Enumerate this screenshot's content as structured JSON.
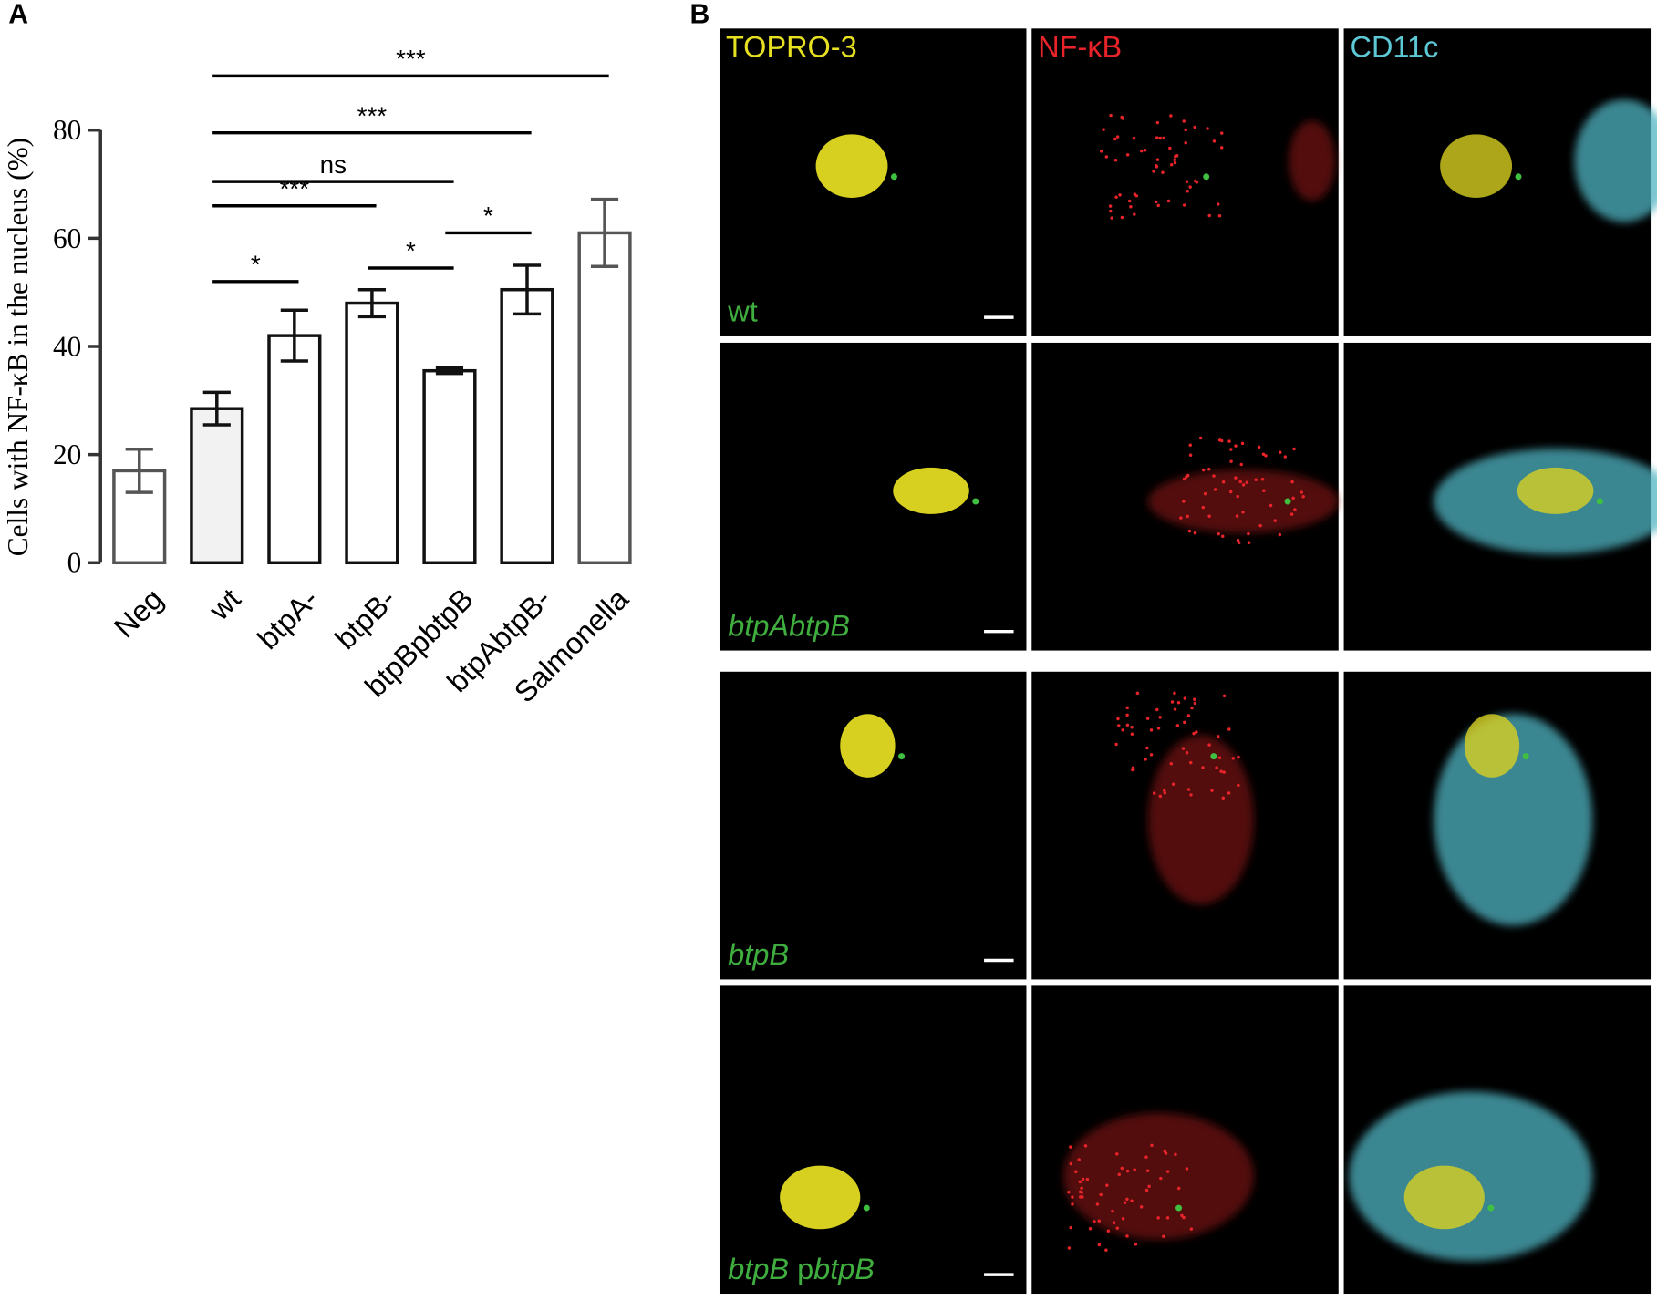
{
  "panel_labels": [
    "A",
    "B"
  ],
  "chart_data": {
    "type": "bar",
    "y_label": "Cells with NF-κB in the nucleus (%)",
    "categories": [
      "Neg",
      "wt",
      "btpA-",
      "btpB-",
      "btpBpbtpB",
      "btpAbtpB-",
      "Salmonella"
    ],
    "values": [
      17,
      28.5,
      42,
      48,
      35.5,
      50.5,
      61
    ],
    "errors": [
      4,
      3,
      4.7,
      2.5,
      0.5,
      4.5,
      6.2
    ],
    "colors": [
      "#ffffff",
      "#f2f2f2",
      "#ffffff",
      "#ffffff",
      "#ffffff",
      "#ffffff",
      "#ffffff"
    ],
    "edge_colors": [
      "#555555",
      "#111111",
      "#111111",
      "#111111",
      "#111111",
      "#111111",
      "#555555"
    ],
    "ylim": [
      0,
      80
    ],
    "yticks": [
      0,
      20,
      40,
      60,
      80
    ],
    "annotations": [
      {
        "label": "*",
        "from": "wt",
        "to": "btpA-",
        "y": 52
      },
      {
        "label": "***",
        "from": "wt",
        "to": "btpB-",
        "y": 66
      },
      {
        "label": "*",
        "from": "btpB-",
        "to": "btpBpbtpB",
        "y": 54.5
      },
      {
        "label": "*",
        "from": "btpBpbtpB",
        "to": "btpAbtpB-",
        "y": 61
      },
      {
        "label": "ns",
        "from": "wt",
        "to": "btpBpbtpB",
        "y": 70.5
      },
      {
        "label": "***",
        "from": "wt",
        "to": "btpAbtpB-",
        "y": 79.5
      },
      {
        "label": "***",
        "from": "wt",
        "to": "Salmonella",
        "y": 90
      }
    ]
  },
  "micrographs": {
    "columns": [
      {
        "label": "TOPRO-3",
        "color": "#e6e020"
      },
      {
        "label": "NF-κB",
        "color": "#e8232a"
      },
      {
        "label": "CD11c",
        "color": "#5ec9d6"
      }
    ],
    "rows": [
      {
        "label": [
          {
            "text": "wt",
            "italic": false
          }
        ]
      },
      {
        "label": [
          {
            "text": "btpAbtpB",
            "italic": true
          }
        ]
      },
      {
        "label": [
          {
            "text": "btpB",
            "italic": true
          }
        ]
      },
      {
        "label": [
          {
            "text": "btpB",
            "italic": true
          },
          {
            "text": " p",
            "italic": false
          },
          {
            "text": "btpB",
            "italic": true
          }
        ]
      }
    ],
    "row_label_color": "#3fae3f"
  }
}
